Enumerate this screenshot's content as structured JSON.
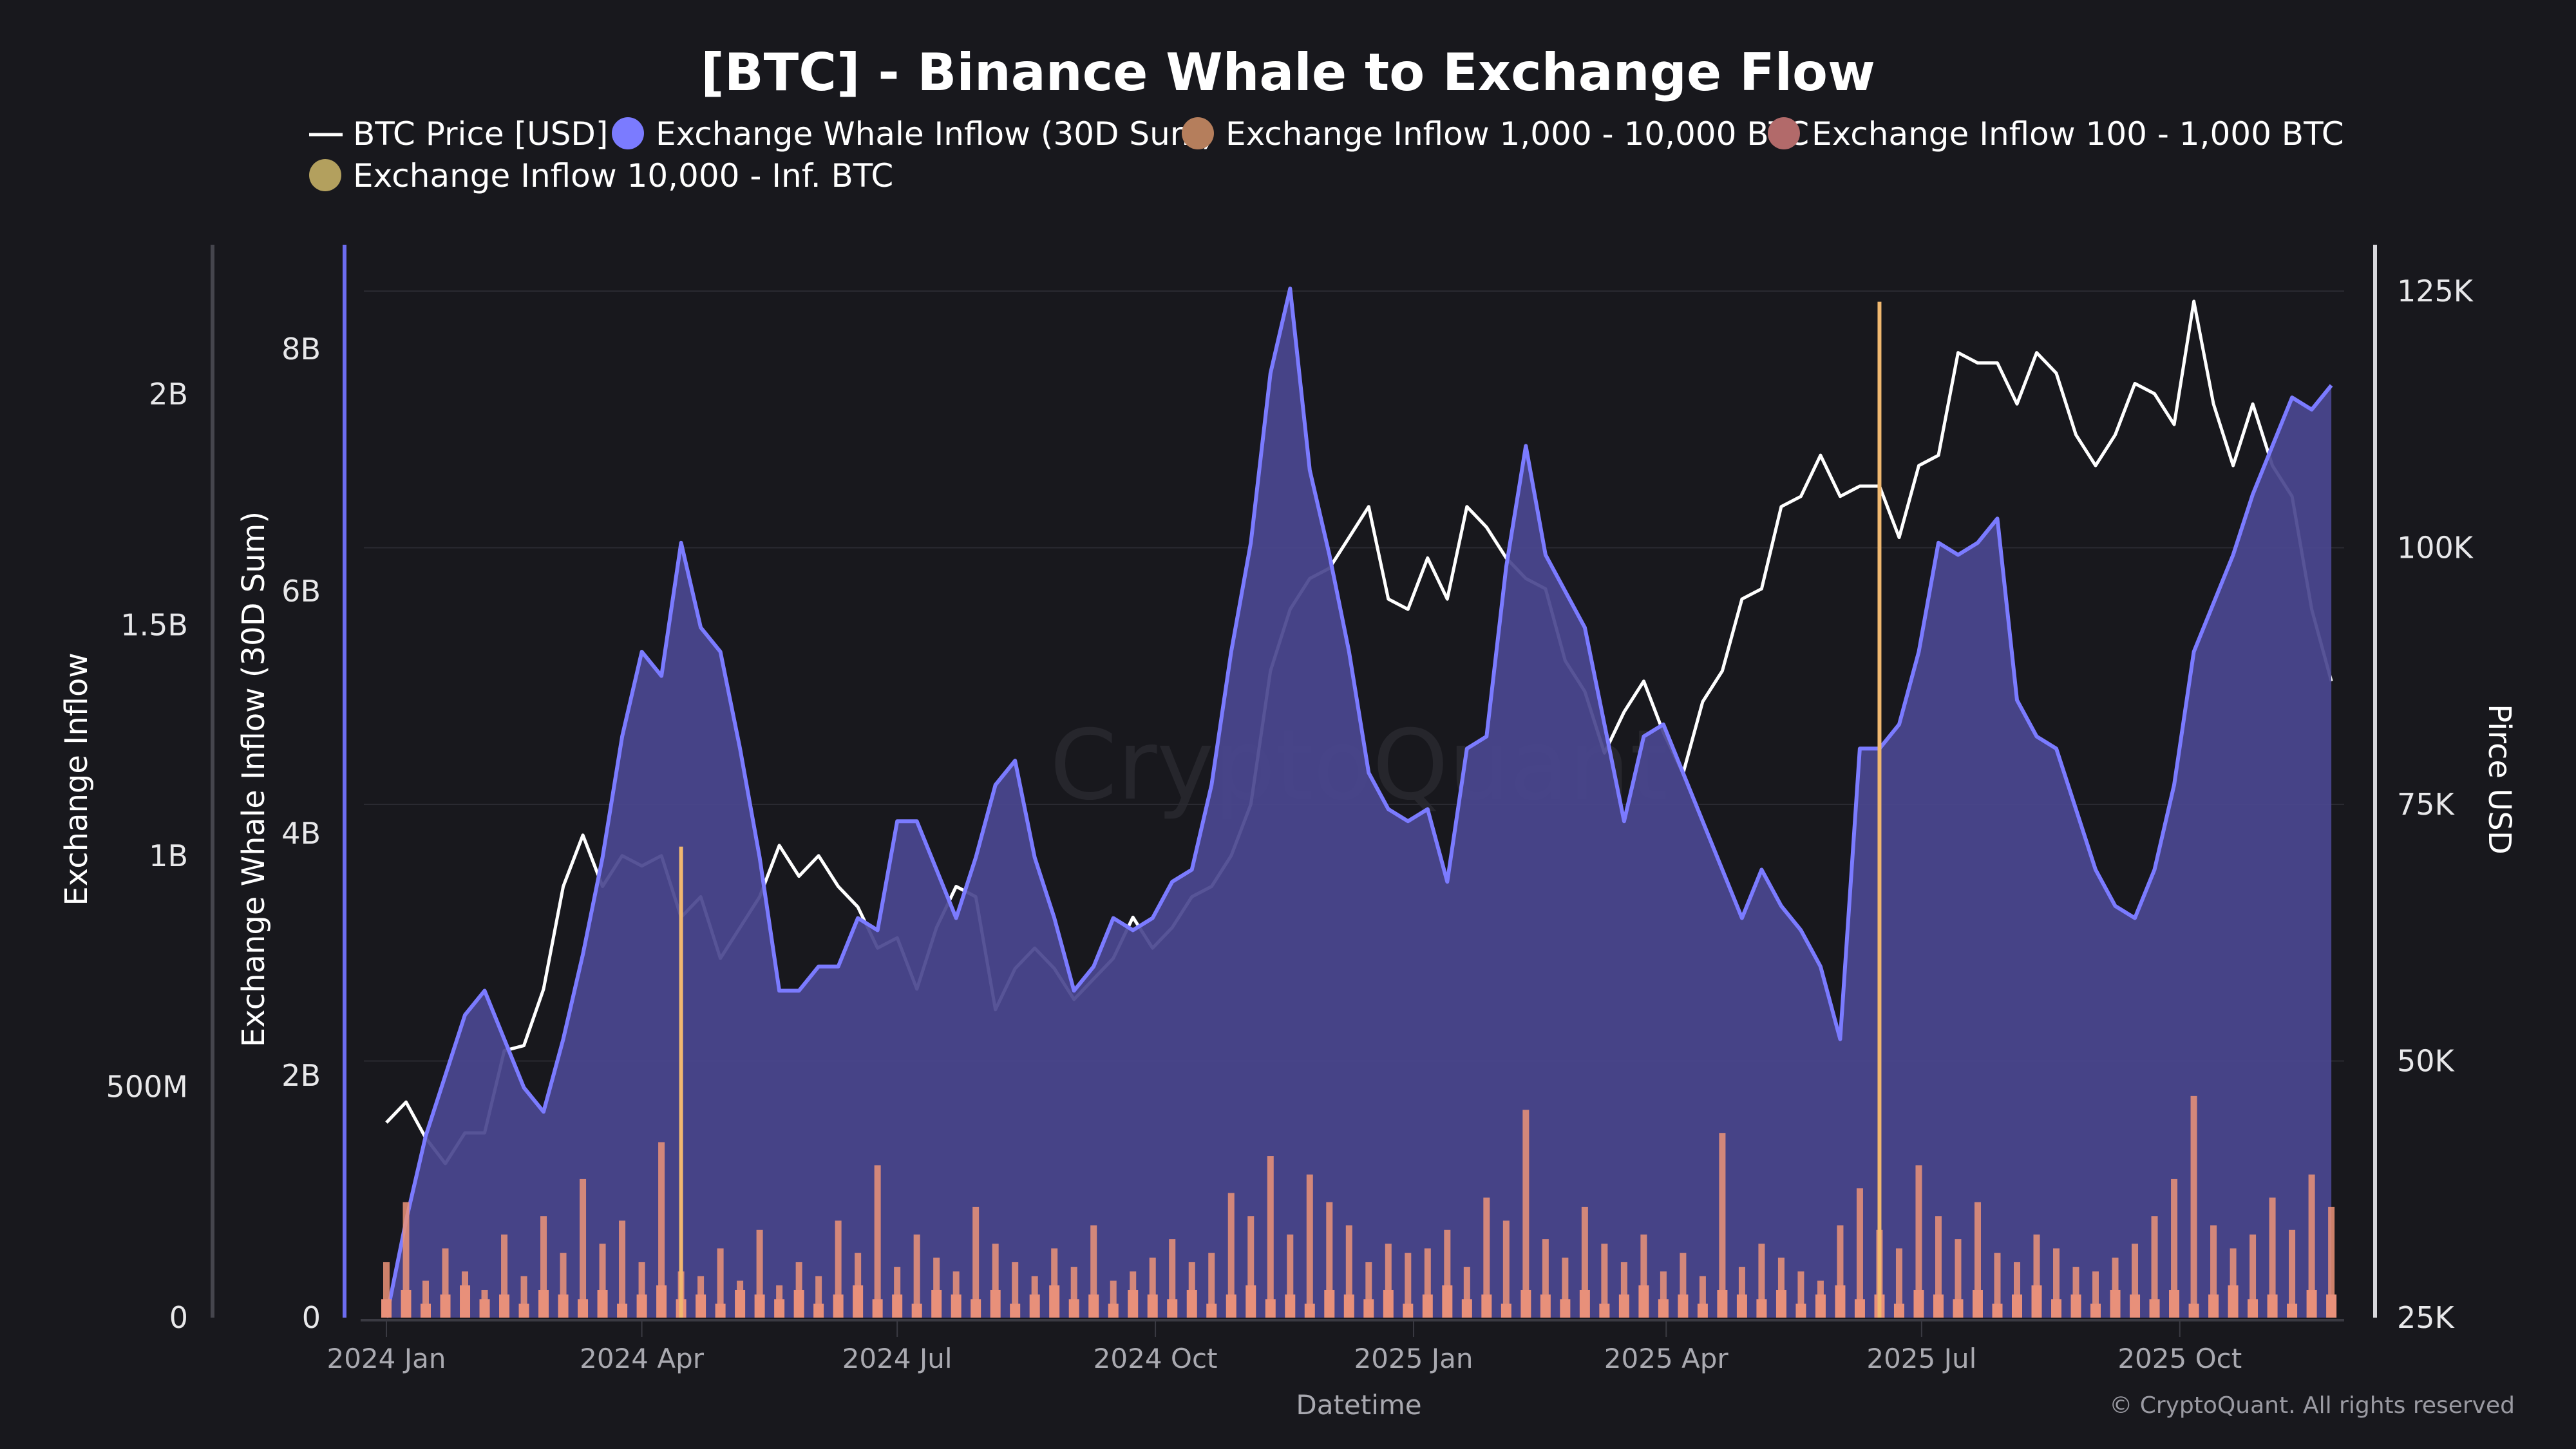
{
  "chart_data": {
    "type": "line",
    "title": "[BTC] - Binance Whale to Exchange Flow",
    "xlabel": "Datetime",
    "ylabel_left_outer": "Exchange Inflow",
    "ylabel_left_inner": "Exchange Whale Inflow (30D Sum)",
    "ylabel_right": "Pirce USD",
    "copyright": "© CryptoQuant. All rights reserved",
    "watermark": "CryptoQuant",
    "legend_placement": "top",
    "grid": true,
    "x_ticks": [
      {
        "label": "2024 Jan",
        "date": "2024-01-01"
      },
      {
        "label": "2024 Apr",
        "date": "2024-04-01"
      },
      {
        "label": "2024 Jul",
        "date": "2024-07-01"
      },
      {
        "label": "2024 Oct",
        "date": "2024-10-01"
      },
      {
        "label": "2025 Jan",
        "date": "2025-01-01"
      },
      {
        "label": "2025 Apr",
        "date": "2025-04-01"
      },
      {
        "label": "2025 Jul",
        "date": "2025-07-01"
      },
      {
        "label": "2025 Oct",
        "date": "2025-10-01"
      }
    ],
    "y_left_outer": {
      "range": [
        0,
        2200000000
      ],
      "ticks": [
        {
          "v": 0,
          "label": "0"
        },
        {
          "v": 500000000,
          "label": "500M"
        },
        {
          "v": 1000000000,
          "label": "1B"
        },
        {
          "v": 1500000000,
          "label": "1.5B"
        },
        {
          "v": 2000000000,
          "label": "2B"
        }
      ]
    },
    "y_left_inner": {
      "range": [
        0,
        8500000000
      ],
      "ticks": [
        {
          "v": 0,
          "label": "0"
        },
        {
          "v": 2000000000,
          "label": "2B"
        },
        {
          "v": 4000000000,
          "label": "4B"
        },
        {
          "v": 6000000000,
          "label": "6B"
        },
        {
          "v": 8000000000,
          "label": "8B"
        }
      ]
    },
    "y_right": {
      "range": [
        25000,
        127000
      ],
      "ticks": [
        {
          "v": 25000,
          "label": "25K"
        },
        {
          "v": 50000,
          "label": "50K"
        },
        {
          "v": 75000,
          "label": "75K"
        },
        {
          "v": 100000,
          "label": "100K"
        },
        {
          "v": 125000,
          "label": "125K"
        }
      ]
    },
    "colors": {
      "price": "#ffffff",
      "whale_line": "#7b7bff",
      "whale_fill": "#4a478f",
      "inflow_1k_10k": "#b57e5c",
      "inflow_100_1k": "#b26a6a",
      "inflow_10k_inf": "#b3a05e",
      "bars": "#ec9378",
      "bars_10k": "#f0b870"
    },
    "legend": [
      {
        "name": "BTC Price [USD]",
        "marker": "line",
        "color": "#ffffff"
      },
      {
        "name": "Exchange Whale Inflow (30D Sum)",
        "marker": "circle",
        "color": "#7b7bff"
      },
      {
        "name": "Exchange Inflow 1,000 - 10,000 BTC",
        "marker": "circle",
        "color": "#b57e5c"
      },
      {
        "name": "Exchange Inflow 100 - 1,000 BTC",
        "marker": "circle",
        "color": "#b26a6a"
      },
      {
        "name": "Exchange Inflow 10,000 - Inf. BTC",
        "marker": "circle",
        "color": "#b3a05e"
      }
    ],
    "dates_start": "2024-01-01",
    "dates_interval": "weekly",
    "series": [
      {
        "name": "BTC Price [USD]",
        "unit": "K USD",
        "values": [
          44,
          46,
          42.5,
          40,
          43,
          43,
          51,
          51.5,
          57,
          67,
          72,
          67,
          70,
          69,
          70,
          64,
          66,
          60,
          63,
          66,
          71,
          68,
          70,
          67,
          65,
          61,
          62,
          57,
          63,
          67,
          66,
          55,
          59,
          61,
          59,
          56,
          58,
          60,
          64,
          61,
          63,
          66,
          67,
          70,
          75,
          88,
          94,
          97,
          98,
          101,
          104,
          95,
          94,
          99,
          95,
          104,
          102,
          99,
          97,
          96,
          89,
          86,
          80,
          84,
          87,
          82,
          78,
          85,
          88,
          95,
          96,
          104,
          105,
          109,
          105,
          106,
          106,
          101,
          108,
          109,
          119,
          118,
          118,
          114,
          119,
          117,
          111,
          108,
          111,
          116,
          115,
          112,
          124,
          114,
          108,
          114,
          108,
          105,
          94,
          87
        ]
      },
      {
        "name": "Exchange Whale Inflow (30D Sum)",
        "unit": "B USD",
        "values": [
          0,
          0.8,
          1.5,
          2.0,
          2.5,
          2.7,
          2.3,
          1.9,
          1.7,
          2.3,
          3.0,
          3.8,
          4.8,
          5.5,
          5.3,
          6.4,
          5.7,
          5.5,
          4.7,
          3.8,
          2.7,
          2.7,
          2.9,
          2.9,
          3.3,
          3.2,
          4.1,
          4.1,
          3.7,
          3.3,
          3.8,
          4.4,
          4.6,
          3.8,
          3.3,
          2.7,
          2.9,
          3.3,
          3.2,
          3.3,
          3.6,
          3.7,
          4.4,
          5.5,
          6.4,
          7.8,
          8.5,
          7.0,
          6.3,
          5.5,
          4.5,
          4.2,
          4.1,
          4.2,
          3.6,
          4.7,
          4.8,
          6.2,
          7.2,
          6.3,
          6.0,
          5.7,
          4.9,
          4.1,
          4.8,
          4.9,
          4.5,
          4.1,
          3.7,
          3.3,
          3.7,
          3.4,
          3.2,
          2.9,
          2.3,
          4.7,
          4.7,
          4.9,
          5.5,
          6.4,
          6.3,
          6.4,
          6.6,
          5.1,
          4.8,
          4.7,
          4.2,
          3.7,
          3.4,
          3.3,
          3.7,
          4.4,
          5.5,
          5.9,
          6.3,
          6.8,
          7.2,
          7.6,
          7.5,
          7.7
        ]
      },
      {
        "name": "Exchange Inflow 1,000 - 10,000 BTC",
        "unit": "B USD",
        "values": [
          0.12,
          0.25,
          0.08,
          0.15,
          0.1,
          0.06,
          0.18,
          0.09,
          0.22,
          0.14,
          0.3,
          0.16,
          0.21,
          0.12,
          0.38,
          0.1,
          0.09,
          0.15,
          0.08,
          0.19,
          0.07,
          0.12,
          0.09,
          0.21,
          0.14,
          0.33,
          0.11,
          0.18,
          0.13,
          0.1,
          0.24,
          0.16,
          0.12,
          0.09,
          0.15,
          0.11,
          0.2,
          0.08,
          0.1,
          0.13,
          0.17,
          0.12,
          0.14,
          0.27,
          0.22,
          0.35,
          0.18,
          0.31,
          0.25,
          0.2,
          0.12,
          0.16,
          0.14,
          0.15,
          0.19,
          0.11,
          0.26,
          0.21,
          0.45,
          0.17,
          0.13,
          0.24,
          0.16,
          0.12,
          0.18,
          0.1,
          0.14,
          0.09,
          0.4,
          0.11,
          0.16,
          0.13,
          0.1,
          0.08,
          0.2,
          0.28,
          0.19,
          0.15,
          0.33,
          0.22,
          0.17,
          0.25,
          0.14,
          0.12,
          0.18,
          0.15,
          0.11,
          0.1,
          0.13,
          0.16,
          0.22,
          0.3,
          0.48,
          0.2,
          0.15,
          0.18,
          0.26,
          0.19,
          0.31,
          0.24
        ]
      },
      {
        "name": "Exchange Inflow 100 - 1,000 BTC",
        "unit": "B USD",
        "values": [
          0.04,
          0.06,
          0.03,
          0.05,
          0.07,
          0.04,
          0.05,
          0.03,
          0.06,
          0.05,
          0.04,
          0.06,
          0.03,
          0.05,
          0.07,
          0.04,
          0.05,
          0.03,
          0.06,
          0.05,
          0.04,
          0.06,
          0.03,
          0.05,
          0.07,
          0.04,
          0.05,
          0.03,
          0.06,
          0.05,
          0.04,
          0.06,
          0.03,
          0.05,
          0.07,
          0.04,
          0.05,
          0.03,
          0.06,
          0.05,
          0.04,
          0.06,
          0.03,
          0.05,
          0.07,
          0.04,
          0.05,
          0.03,
          0.06,
          0.05,
          0.04,
          0.06,
          0.03,
          0.05,
          0.07,
          0.04,
          0.05,
          0.03,
          0.06,
          0.05,
          0.04,
          0.06,
          0.03,
          0.05,
          0.07,
          0.04,
          0.05,
          0.03,
          0.06,
          0.05,
          0.04,
          0.06,
          0.03,
          0.05,
          0.07,
          0.04,
          0.05,
          0.03,
          0.06,
          0.05,
          0.04,
          0.06,
          0.03,
          0.05,
          0.07,
          0.04,
          0.05,
          0.03,
          0.06,
          0.05,
          0.04,
          0.06,
          0.03,
          0.05,
          0.07,
          0.04,
          0.05,
          0.03,
          0.06,
          0.05
        ]
      },
      {
        "name": "Exchange Inflow 10,000 - Inf. BTC",
        "unit": "B USD",
        "points": [
          {
            "date": "2024-04-15",
            "value": 1.02
          },
          {
            "date": "2025-06-16",
            "value": 2.2
          }
        ]
      }
    ]
  }
}
